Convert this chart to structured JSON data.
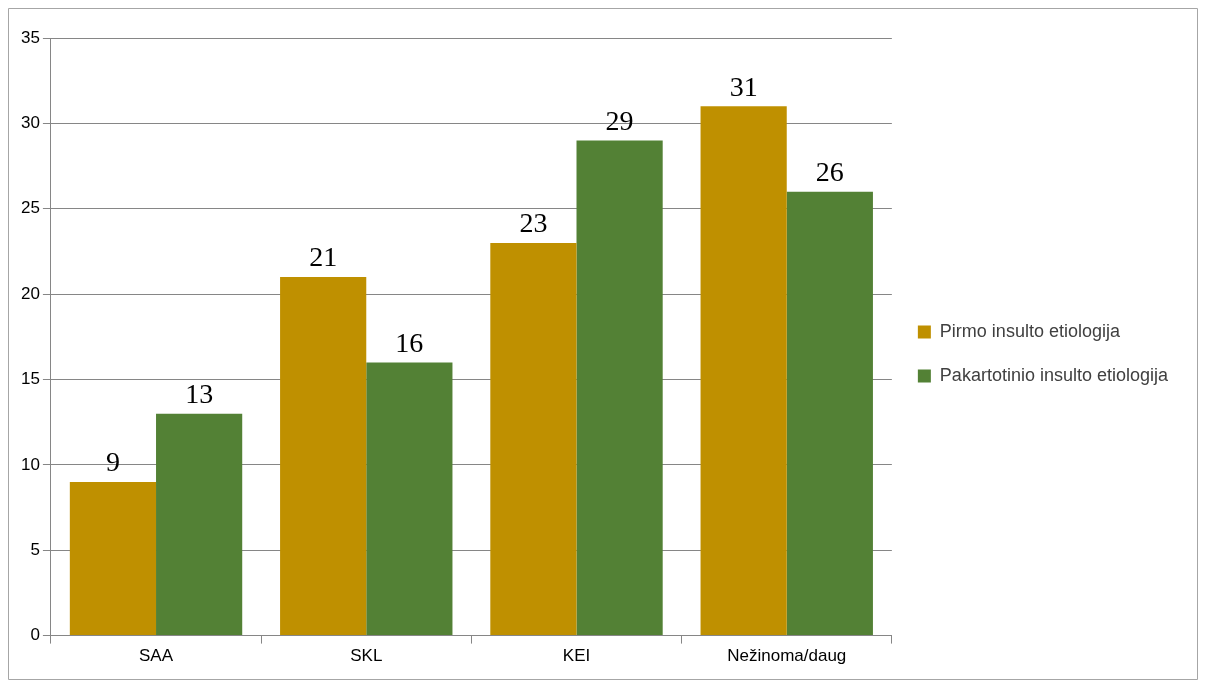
{
  "chart_data": {
    "type": "bar",
    "categories": [
      "SAA",
      "SKL",
      "KEI",
      "Nežinoma/daug"
    ],
    "series": [
      {
        "name": "Pirmo insulto etiologija",
        "color": "#bf9000",
        "values": [
          9,
          21,
          23,
          31
        ]
      },
      {
        "name": "Pakartotinio insulto etiologija",
        "color": "#538135",
        "values": [
          13,
          16,
          29,
          26
        ]
      }
    ],
    "ylim": [
      0,
      35
    ],
    "yticks": [
      0,
      5,
      10,
      15,
      20,
      25,
      30,
      35
    ],
    "grid": "y",
    "legend": "right",
    "data_labels": true
  }
}
